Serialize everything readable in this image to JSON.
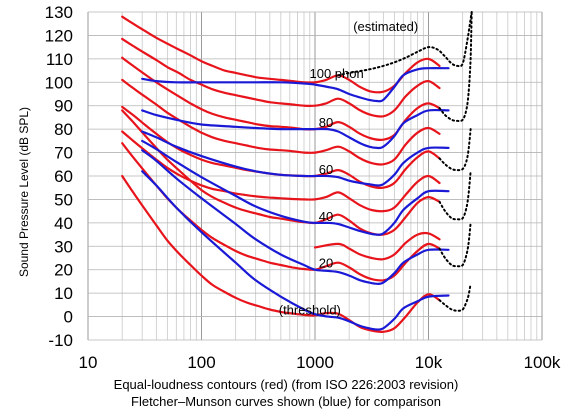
{
  "chart_data": {
    "type": "line",
    "ylabel": "Sound Pressure Level (dB SPL)",
    "caption": [
      "Equal-loudness contours (red) (from ISO 226:2003 revision)",
      "Fletcher–Munson curves shown (blue) for comparison"
    ],
    "x_scale": "log",
    "xlim": [
      10,
      100000
    ],
    "ylim": [
      -10,
      130
    ],
    "x_ticks": [
      {
        "value": 10,
        "label": "10"
      },
      {
        "value": 100,
        "label": "100"
      },
      {
        "value": 1000,
        "label": "1000"
      },
      {
        "value": 10000,
        "label": "10k"
      },
      {
        "value": 100000,
        "label": "100k"
      }
    ],
    "y_ticks": [
      -10,
      0,
      10,
      20,
      30,
      40,
      50,
      60,
      70,
      80,
      90,
      100,
      110,
      120,
      130
    ],
    "grid": true,
    "annotations": [
      {
        "text": "(estimated)",
        "x": 4200,
        "y": 124
      },
      {
        "text": "100 phon",
        "x": 1550,
        "y": 104
      },
      {
        "text": "80",
        "x": 1250,
        "y": 83
      },
      {
        "text": "60",
        "x": 1250,
        "y": 63
      },
      {
        "text": "40",
        "x": 1250,
        "y": 43
      },
      {
        "text": "20",
        "x": 1250,
        "y": 23
      },
      {
        "text": "(threshold)",
        "x": 900,
        "y": 3
      }
    ],
    "colors": {
      "iso": "#e8141c",
      "fletcher": "#1a1ad6",
      "estimated": "#000000"
    },
    "series": [
      {
        "group": "iso",
        "phon": 100,
        "x": [
          20,
          25,
          31.5,
          40,
          50,
          63,
          80,
          100,
          125,
          160,
          200,
          250,
          315,
          400,
          500,
          630,
          800,
          1000,
          1250,
          1600,
          2000,
          2500,
          3150,
          4000,
          5000,
          6300,
          8000,
          10000,
          12500
        ],
        "y": [
          128,
          125,
          122,
          119,
          116.5,
          114,
          111.5,
          109,
          107,
          105,
          104,
          103,
          102,
          101.5,
          101,
          100.5,
          100,
          100,
          101,
          103,
          101,
          98,
          96,
          96,
          98.5,
          104,
          108.5,
          110,
          107
        ]
      },
      {
        "group": "iso",
        "phon": 90,
        "x": [
          20,
          25,
          31.5,
          40,
          50,
          63,
          80,
          100,
          125,
          160,
          200,
          250,
          315,
          400,
          500,
          630,
          800,
          1000,
          1250,
          1600,
          2000,
          2500,
          3150,
          4000,
          5000,
          6300,
          8000,
          10000,
          12500
        ],
        "y": [
          118.5,
          115.5,
          112.5,
          109.5,
          106.5,
          104,
          101,
          99,
          97,
          95.5,
          94.5,
          93.5,
          92.5,
          91.5,
          91,
          90.5,
          90,
          90,
          91,
          93,
          91,
          88,
          86,
          85.5,
          88,
          94,
          98.5,
          100.5,
          97.5
        ]
      },
      {
        "group": "iso",
        "phon": 80,
        "x": [
          20,
          25,
          31.5,
          40,
          50,
          63,
          80,
          100,
          125,
          160,
          200,
          250,
          315,
          400,
          500,
          630,
          800,
          1000,
          1250,
          1600,
          2000,
          2500,
          3150,
          4000,
          5000,
          6300,
          8000,
          10000,
          12500
        ],
        "y": [
          110.5,
          107,
          103.5,
          100,
          97,
          94,
          91,
          88.5,
          86.5,
          85,
          84,
          83,
          82,
          81.3,
          81,
          80.6,
          80,
          80,
          81,
          83,
          81,
          78,
          76,
          75.5,
          77.5,
          84,
          89,
          91,
          89
        ]
      },
      {
        "group": "iso",
        "phon": 70,
        "x": [
          20,
          25,
          31.5,
          40,
          50,
          63,
          80,
          100,
          125,
          160,
          200,
          250,
          315,
          400,
          500,
          630,
          800,
          1000,
          1250,
          1600,
          2000,
          2500,
          3150,
          4000,
          5000,
          6300,
          8000,
          10000,
          12500
        ],
        "y": [
          101,
          97.5,
          94,
          90.5,
          87,
          84,
          81,
          78.5,
          76.5,
          75,
          74,
          73,
          72,
          71.3,
          71,
          70.6,
          70,
          70,
          71,
          72.5,
          70.5,
          67.5,
          65.5,
          65,
          67,
          73.5,
          78.5,
          80.5,
          78
        ]
      },
      {
        "group": "iso",
        "phon": 60,
        "x": [
          20,
          25,
          31.5,
          40,
          50,
          63,
          80,
          100,
          125,
          160,
          200,
          250,
          315,
          400,
          500,
          630,
          800,
          1000,
          1250,
          1600,
          2000,
          2500,
          3150,
          4000,
          5000,
          6300,
          8000,
          10000,
          12500
        ],
        "y": [
          89.5,
          86,
          82,
          78,
          74.5,
          71.5,
          69,
          67,
          65.5,
          64.5,
          63.5,
          62.5,
          61.8,
          61,
          60.5,
          60.2,
          60,
          60,
          61,
          62.5,
          60.5,
          57.5,
          55.5,
          55,
          57,
          63,
          68,
          70.5,
          67.5
        ]
      },
      {
        "group": "iso",
        "phon": 50,
        "x": [
          20,
          25,
          31.5,
          40,
          50,
          63,
          80,
          100,
          125,
          160,
          200,
          250,
          315,
          400,
          500,
          630,
          800,
          1000,
          1250,
          1600,
          2000,
          2500,
          3150,
          4000,
          5000,
          6300,
          8000,
          10000,
          12500
        ],
        "y": [
          79,
          75,
          71,
          67,
          63.5,
          60.5,
          58,
          56,
          54.5,
          53.5,
          52.5,
          51.8,
          51.2,
          50.8,
          50.5,
          50.2,
          50,
          50,
          51,
          53,
          50.5,
          47.5,
          45.5,
          45,
          46.5,
          52,
          57.5,
          60,
          57
        ]
      },
      {
        "group": "iso",
        "phon": 40,
        "x": [
          20,
          25,
          31.5,
          40,
          50,
          63,
          80,
          100,
          125,
          160,
          200,
          250,
          315,
          400,
          500,
          630,
          800,
          1000,
          1250,
          1600,
          2000,
          2500,
          3150,
          4000,
          5000,
          6300,
          8000,
          10000,
          12500
        ],
        "y": [
          88,
          83,
          77.5,
          72,
          67,
          62.5,
          58,
          54,
          51,
          48.5,
          46.5,
          45,
          43.8,
          42.5,
          41.8,
          41,
          40.3,
          40,
          41.5,
          43.5,
          41,
          37.5,
          35.5,
          35,
          37,
          42.5,
          48.5,
          51,
          49
        ]
      },
      {
        "group": "iso",
        "phon": 20,
        "x": [
          20,
          25,
          31.5,
          40,
          50,
          63,
          80,
          100,
          125,
          160,
          200,
          250,
          315,
          400,
          500,
          630,
          800,
          1000,
          1250,
          1600,
          2000,
          2500,
          3150,
          4000,
          5000,
          6300,
          8000,
          10000,
          12500
        ],
        "y": [
          74,
          68,
          62,
          56,
          50.5,
          45.5,
          41,
          37,
          33.5,
          30.5,
          28,
          26,
          24.5,
          23,
          22,
          21,
          20.3,
          20,
          21.5,
          23,
          21,
          18,
          16,
          15.5,
          17.5,
          23,
          28,
          31,
          29
        ]
      },
      {
        "group": "iso",
        "phon": 0,
        "x": [
          20,
          25,
          31.5,
          40,
          50,
          63,
          80,
          100,
          125,
          160,
          200,
          250,
          315,
          400,
          500,
          630,
          800,
          1000,
          1250,
          1600,
          2000,
          2500,
          3150,
          4000,
          5000,
          6300,
          8000,
          10000,
          12500
        ],
        "y": [
          60,
          53,
          46,
          39,
          32.5,
          27,
          22,
          17.5,
          13.5,
          10.5,
          8,
          6,
          4.5,
          3,
          2,
          1.3,
          0.7,
          0.5,
          1.5,
          1.2,
          -1.5,
          -4.5,
          -6,
          -6.5,
          -5,
          0,
          6,
          9.5,
          7
        ]
      },
      {
        "group": "iso_flat",
        "phon": 30,
        "x": [
          1000,
          1600,
          2000,
          2500,
          3150,
          4000,
          5000,
          6300,
          8000,
          10000,
          12500
        ],
        "y": [
          29.5,
          31,
          29,
          26.5,
          25,
          24.5,
          26.5,
          31.5,
          35,
          35.5,
          33
        ]
      },
      {
        "group": "fletcher",
        "phon": 100,
        "x": [
          30,
          40,
          60,
          100,
          200,
          300,
          500,
          800,
          1000,
          1300,
          1600,
          2000,
          2500,
          3000,
          3500,
          4000,
          5000,
          6000,
          8000,
          10000,
          15000
        ],
        "y": [
          101.5,
          100.5,
          100,
          100,
          100,
          100,
          100,
          99.5,
          99,
          98,
          97,
          95,
          93.5,
          92.5,
          92,
          92.5,
          98,
          103,
          105.5,
          106,
          106
        ]
      },
      {
        "group": "fletcher",
        "phon": 80,
        "x": [
          30,
          40,
          60,
          100,
          200,
          300,
          500,
          800,
          1000,
          1300,
          1600,
          2000,
          2500,
          3000,
          3500,
          4000,
          5000,
          6000,
          8000,
          10000,
          15000
        ],
        "y": [
          88,
          86,
          84,
          82,
          81,
          80.5,
          80,
          80,
          80,
          80,
          79,
          76.5,
          74,
          72.5,
          72,
          72.5,
          77,
          82.5,
          86,
          88,
          88
        ]
      },
      {
        "group": "fletcher",
        "phon": 60,
        "x": [
          30,
          40,
          60,
          100,
          200,
          300,
          500,
          800,
          1000,
          1300,
          1600,
          2000,
          2500,
          3000,
          3500,
          4000,
          5000,
          6000,
          8000,
          10000,
          15000
        ],
        "y": [
          79,
          76.5,
          72.5,
          68.5,
          64,
          62,
          60.5,
          60,
          60,
          60,
          59.5,
          58,
          57,
          56.5,
          56,
          56.5,
          60.5,
          65.5,
          70,
          72,
          72
        ]
      },
      {
        "group": "fletcher",
        "phon": 40,
        "x": [
          30,
          40,
          60,
          100,
          200,
          300,
          500,
          800,
          1000,
          1300,
          1600,
          2000,
          2500,
          3000,
          3500,
          4000,
          5000,
          6000,
          8000,
          10000,
          15000
        ],
        "y": [
          75,
          71.5,
          66,
          59.5,
          51.5,
          47,
          43,
          40.5,
          40,
          40,
          39.5,
          38,
          36.5,
          35.5,
          35,
          35.5,
          40,
          45.5,
          50.5,
          53.5,
          53.5
        ]
      },
      {
        "group": "fletcher",
        "phon": 20,
        "x": [
          30,
          40,
          60,
          100,
          200,
          300,
          500,
          800,
          1000,
          1300,
          1600,
          2000,
          2500,
          3000,
          3500,
          4000,
          5000,
          6000,
          8000,
          10000,
          15000
        ],
        "y": [
          71,
          66.5,
          59,
          50.5,
          39.5,
          33,
          26.5,
          22,
          20,
          19.5,
          19,
          17.5,
          15.5,
          14.5,
          14,
          14.5,
          18.5,
          23,
          26.5,
          28.5,
          28.5
        ]
      },
      {
        "group": "fletcher",
        "phon": 0,
        "x": [
          30,
          40,
          60,
          100,
          200,
          300,
          500,
          800,
          1000,
          1300,
          1600,
          2000,
          2500,
          3000,
          3500,
          4000,
          5000,
          6000,
          8000,
          10000,
          15000
        ],
        "y": [
          62,
          56,
          46.5,
          36,
          23,
          15.5,
          8.5,
          3,
          1,
          0,
          -0.5,
          -2,
          -4,
          -5,
          -5.5,
          -5,
          -1,
          3.5,
          6.5,
          8.5,
          9
        ]
      },
      {
        "group": "estimated",
        "phon": 100,
        "x": [
          1600,
          2000,
          3000,
          4000,
          5000,
          6300,
          8000,
          10000,
          12000,
          14000,
          16000,
          18000,
          20000,
          22000,
          24000
        ],
        "y": [
          103,
          104,
          105.5,
          107,
          108.5,
          110.5,
          113,
          115,
          114,
          111,
          108,
          107,
          108,
          118,
          130
        ]
      },
      {
        "group": "estimated",
        "phon": 80,
        "x": [
          12500,
          14000,
          16000,
          18000,
          20000,
          21500,
          22500,
          23500,
          24000
        ],
        "y": [
          89,
          86,
          84,
          83.5,
          84,
          88,
          95,
          110,
          130
        ]
      },
      {
        "group": "estimated",
        "phon": 60,
        "x": [
          12500,
          14000,
          16000,
          18000,
          20000,
          21500,
          22500,
          23500
        ],
        "y": [
          67.5,
          65,
          63,
          62.5,
          63,
          66,
          71,
          80
        ]
      },
      {
        "group": "estimated",
        "phon": 40,
        "x": [
          12500,
          14000,
          16000,
          18000,
          20000,
          21500,
          22500,
          23500
        ],
        "y": [
          49,
          45,
          42,
          41.5,
          42,
          46,
          52,
          62
        ]
      },
      {
        "group": "estimated",
        "phon": 20,
        "x": [
          12500,
          14000,
          16000,
          18000,
          20000,
          21500,
          22500,
          23500
        ],
        "y": [
          29,
          25,
          22,
          21.5,
          22,
          26,
          31,
          40
        ]
      },
      {
        "group": "estimated",
        "phon": 0,
        "x": [
          12500,
          14000,
          16000,
          18000,
          20000,
          21500,
          22500,
          23500
        ],
        "y": [
          7,
          5,
          3,
          2.5,
          3,
          6,
          9,
          14
        ]
      }
    ]
  }
}
